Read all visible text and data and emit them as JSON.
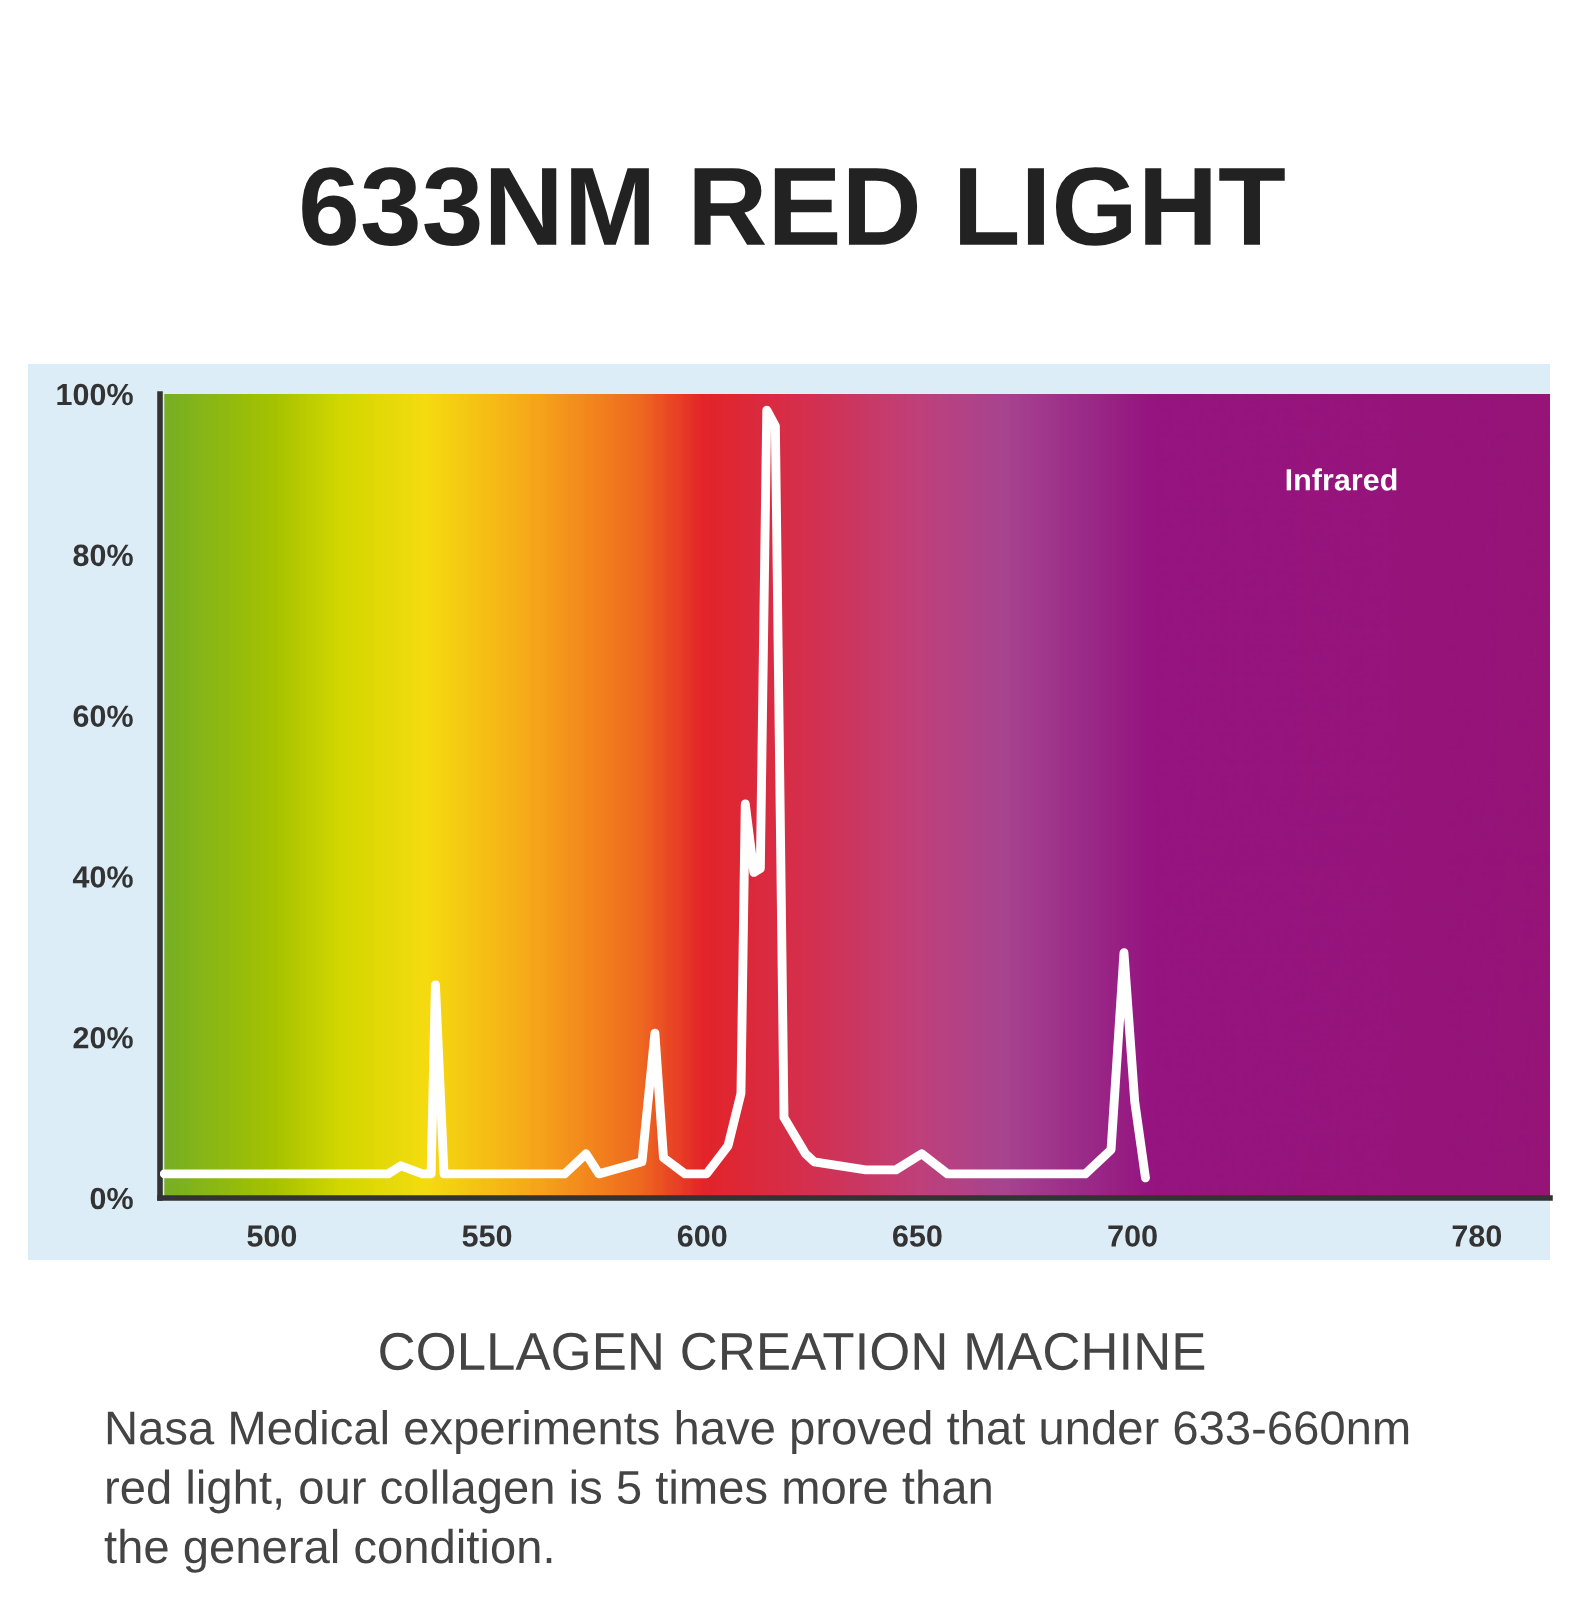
{
  "chart_data": {
    "type": "line",
    "title": "633NM RED LIGHT",
    "subtitle": "COLLAGEN CREATION MACHINE",
    "annotations": [
      "Infrared",
      "Nasa Medical experiments have proved that under 633-660nm\nred light, our collagen is 5 times more than\nthe general condition."
    ],
    "x": [
      475,
      527,
      530,
      535,
      537,
      538,
      540,
      568,
      573,
      576,
      586,
      589,
      591,
      596,
      601,
      606,
      609,
      610,
      612,
      613.5,
      615,
      617,
      619,
      624,
      626,
      638,
      645,
      651,
      657,
      689,
      695,
      698,
      700.5,
      703
    ],
    "series": [
      {
        "color": "#ffffff",
        "values": [
          3,
          3,
          4,
          3,
          3,
          26.5,
          3,
          3,
          5.5,
          3,
          4.5,
          20.5,
          5,
          3,
          3,
          6.5,
          13,
          49,
          40.5,
          41,
          98,
          96,
          10,
          5.5,
          4.5,
          3.5,
          3.5,
          5.5,
          3,
          3,
          6,
          30.5,
          12,
          2.5
        ]
      }
    ],
    "xlim": [
      474,
      797
    ],
    "xticks": [
      500,
      550,
      600,
      650,
      700,
      780
    ],
    "ylim": [
      0,
      100
    ],
    "yticks": [
      {
        "value": 0,
        "label": "0%"
      },
      {
        "value": 20,
        "label": "20%"
      },
      {
        "value": 40,
        "label": "40%"
      },
      {
        "value": 60,
        "label": "60%"
      },
      {
        "value": 80,
        "label": "80%"
      },
      {
        "value": 100,
        "label": "100%"
      }
    ],
    "grid": false,
    "legend": false,
    "marker": "none",
    "line_style": "solid"
  }
}
